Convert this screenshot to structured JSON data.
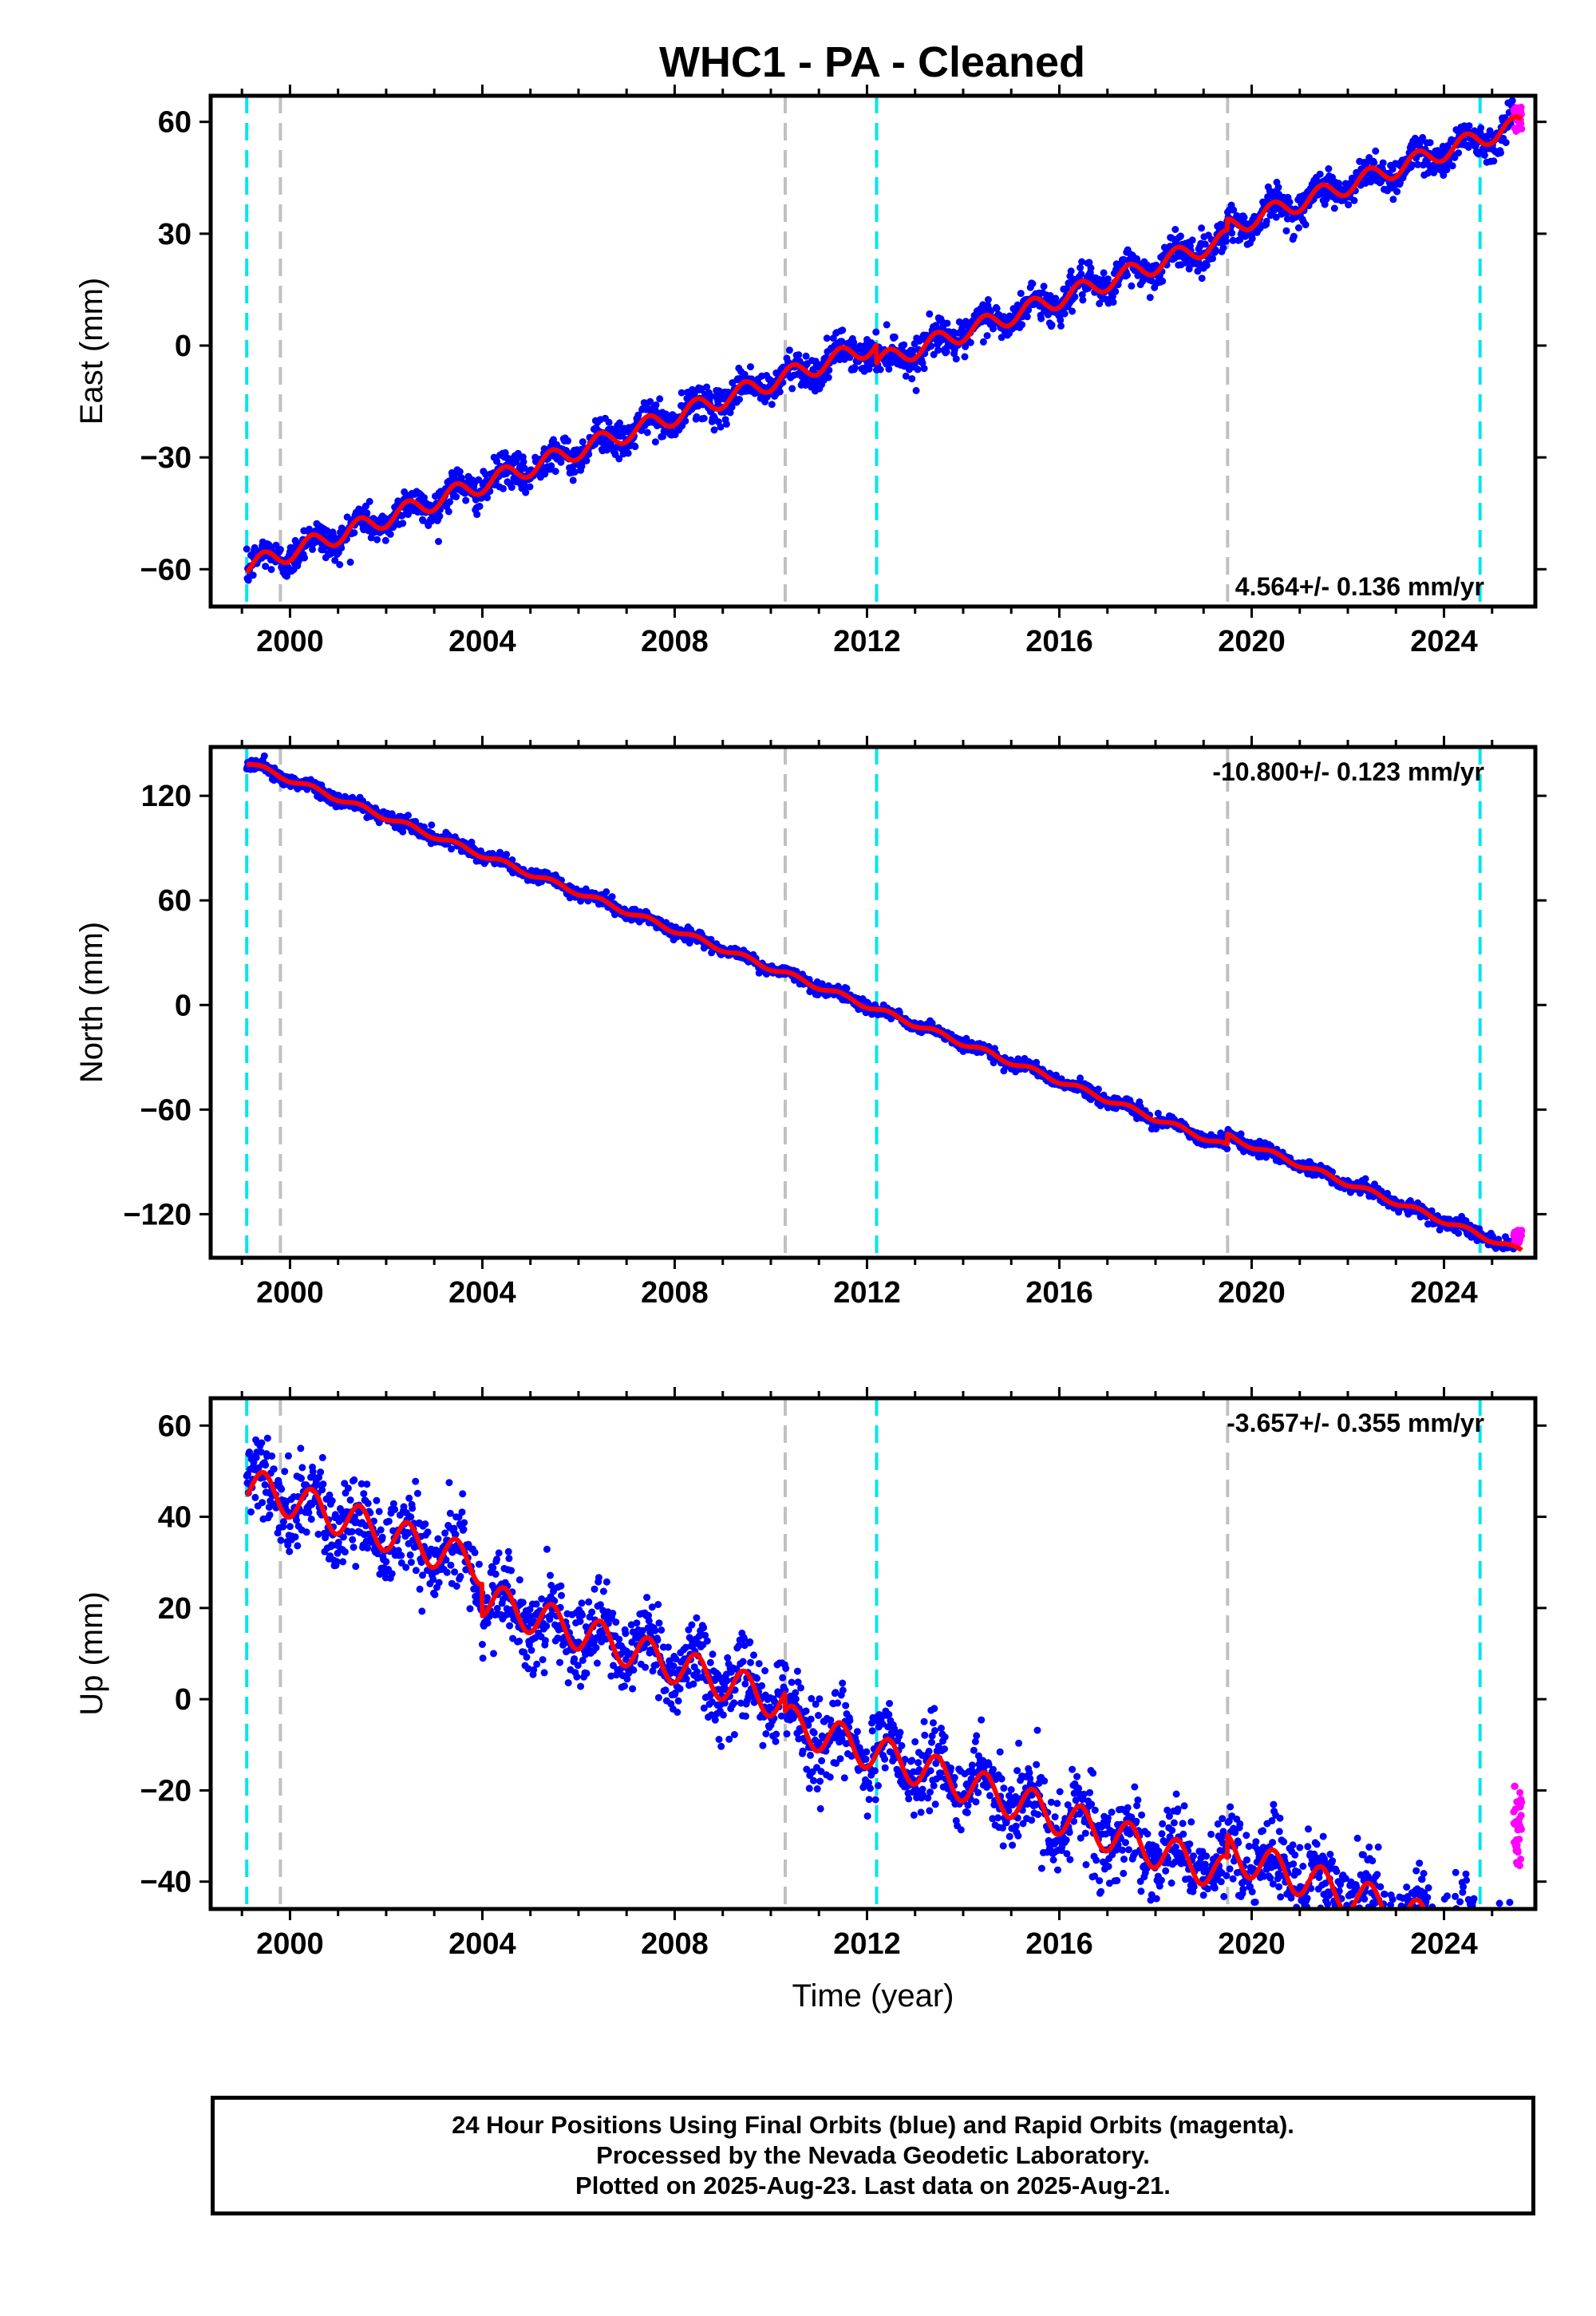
{
  "title": "WHC1  - PA - Cleaned",
  "footer": {
    "line1": "24 Hour Positions Using Final Orbits (blue) and Rapid Orbits (magenta).",
    "line2": "Processed by the Nevada Geodetic Laboratory.",
    "line3": "Plotted on 2025-Aug-23. Last data on 2025-Aug-21."
  },
  "colors": {
    "final_orbits": "#0000ff",
    "rapid_orbits": "#ff00ff",
    "model_fit": "#ff0000",
    "equipment_change": "#00e5ee",
    "earthquake": "#c0c0c0"
  },
  "chart_data": [
    {
      "type": "scatter",
      "ylabel": "East (mm)",
      "xlabel": "",
      "xlim": [
        1998.35,
        2025.9
      ],
      "ylim": [
        -70,
        67
      ],
      "xticks": [
        2000,
        2004,
        2008,
        2012,
        2016,
        2020,
        2024
      ],
      "yticks": [
        -60,
        -30,
        0,
        30,
        60
      ],
      "velocity_label": "4.564+/- 0.136 mm/yr",
      "velocity_label_position": "bottom-right",
      "model": {
        "start_year": 1999.1,
        "end_year": 2025.62,
        "start_value": -59.5,
        "rate_mm_per_yr": 4.564,
        "annual_amplitude": 2.5,
        "scatter": 2.3,
        "offsets": [
          {
            "year": 2012.2,
            "jump": -5
          },
          {
            "year": 2019.5,
            "jump": 3
          }
        ]
      },
      "rapid_orbits": {
        "start_year": 2025.45,
        "end_year": 2025.62,
        "value_range": [
          57,
          64
        ]
      },
      "equipment_changes": [
        1999.1,
        2012.2,
        2024.75
      ],
      "earthquakes": [
        1999.8,
        2010.3,
        2019.5
      ]
    },
    {
      "type": "scatter",
      "ylabel": "North (mm)",
      "xlabel": "",
      "xlim": [
        1998.35,
        2025.9
      ],
      "ylim": [
        -145,
        148
      ],
      "xticks": [
        2000,
        2004,
        2008,
        2012,
        2016,
        2020,
        2024
      ],
      "yticks": [
        -120,
        -60,
        0,
        60,
        120
      ],
      "velocity_label": "-10.800+/- 0.123 mm/yr",
      "velocity_label_position": "top-right",
      "model": {
        "start_year": 1999.1,
        "end_year": 2025.62,
        "start_value": 139,
        "rate_mm_per_yr": -10.8,
        "annual_amplitude": 1.5,
        "scatter": 1.8,
        "offsets": [
          {
            "year": 2019.5,
            "jump": 6
          }
        ]
      },
      "rapid_orbits": {
        "start_year": 2025.45,
        "end_year": 2025.62,
        "value_range": [
          -137,
          -129
        ]
      },
      "equipment_changes": [
        1999.1,
        2012.2,
        2024.75
      ],
      "earthquakes": [
        1999.8,
        2010.3,
        2019.5
      ]
    },
    {
      "type": "scatter",
      "ylabel": "Up (mm)",
      "xlabel": "Time (year)",
      "xlim": [
        1998.35,
        2025.9
      ],
      "ylim": [
        -46,
        66
      ],
      "xticks": [
        2000,
        2004,
        2008,
        2012,
        2016,
        2020,
        2024
      ],
      "yticks": [
        -40,
        -20,
        0,
        20,
        40,
        60
      ],
      "velocity_label": "-3.657+/- 0.355 mm/yr",
      "velocity_label_position": "top-right",
      "model": {
        "start_year": 1999.1,
        "end_year": 2025.62,
        "start_value": 47,
        "rate_mm_per_yr": -3.657,
        "annual_amplitude": 4,
        "scatter": 4.5,
        "offsets": [
          {
            "year": 2004.0,
            "jump": -7
          },
          {
            "year": 2010.3,
            "jump": -4
          },
          {
            "year": 2019.5,
            "jump": 5
          }
        ]
      },
      "rapid_orbits": {
        "start_year": 2025.45,
        "end_year": 2025.62,
        "value_range": [
          -37,
          -18
        ]
      },
      "equipment_changes": [
        1999.1,
        2012.2,
        2024.75
      ],
      "earthquakes": [
        1999.8,
        2010.3,
        2019.5
      ]
    }
  ]
}
